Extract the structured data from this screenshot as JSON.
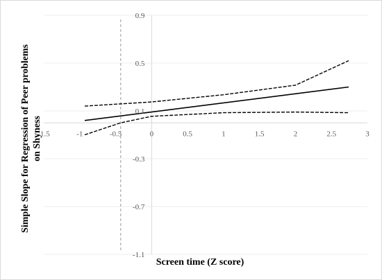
{
  "chart_data": {
    "type": "line",
    "title": "",
    "xlabel": "Screen time (Z score)",
    "ylabel_lines": [
      "Simple Slope for Regression of Peer problems",
      "on Shyness"
    ],
    "xlim": [
      -1.5,
      3
    ],
    "ylim": [
      -1.1,
      0.9
    ],
    "x_ticks": [
      -1.5,
      -1,
      -0.5,
      0,
      0.5,
      1,
      1.5,
      2,
      2.5,
      3
    ],
    "x_tick_labels": [
      "-1.5",
      "-1",
      "-0.5",
      "0",
      "0.5",
      "1",
      "1.5",
      "2",
      "2.5",
      "3"
    ],
    "y_ticks": [
      0.9,
      0.5,
      0.1,
      -0.3,
      -0.7,
      -1.1
    ],
    "y_tick_labels": [
      "0.9",
      "0.5",
      "0.1",
      "-0.3",
      "-0.7",
      "-1.1"
    ],
    "grid": "horizontal",
    "legend": "none",
    "reference_line": {
      "x": -0.43,
      "style": "dashed"
    },
    "series": [
      {
        "role": "estimate",
        "style": "solid",
        "x": [
          -0.93,
          2.74
        ],
        "y": [
          0.02,
          0.3
        ]
      },
      {
        "role": "upper",
        "style": "dashed",
        "x": [
          -0.93,
          0,
          1,
          2,
          2.74
        ],
        "y": [
          0.14,
          0.175,
          0.235,
          0.315,
          0.52
        ]
      },
      {
        "role": "lower",
        "style": "dashed",
        "x": [
          -0.93,
          -0.43,
          0,
          1,
          2,
          2.74
        ],
        "y": [
          -0.1,
          0.0,
          0.055,
          0.085,
          0.09,
          0.085
        ]
      }
    ]
  }
}
